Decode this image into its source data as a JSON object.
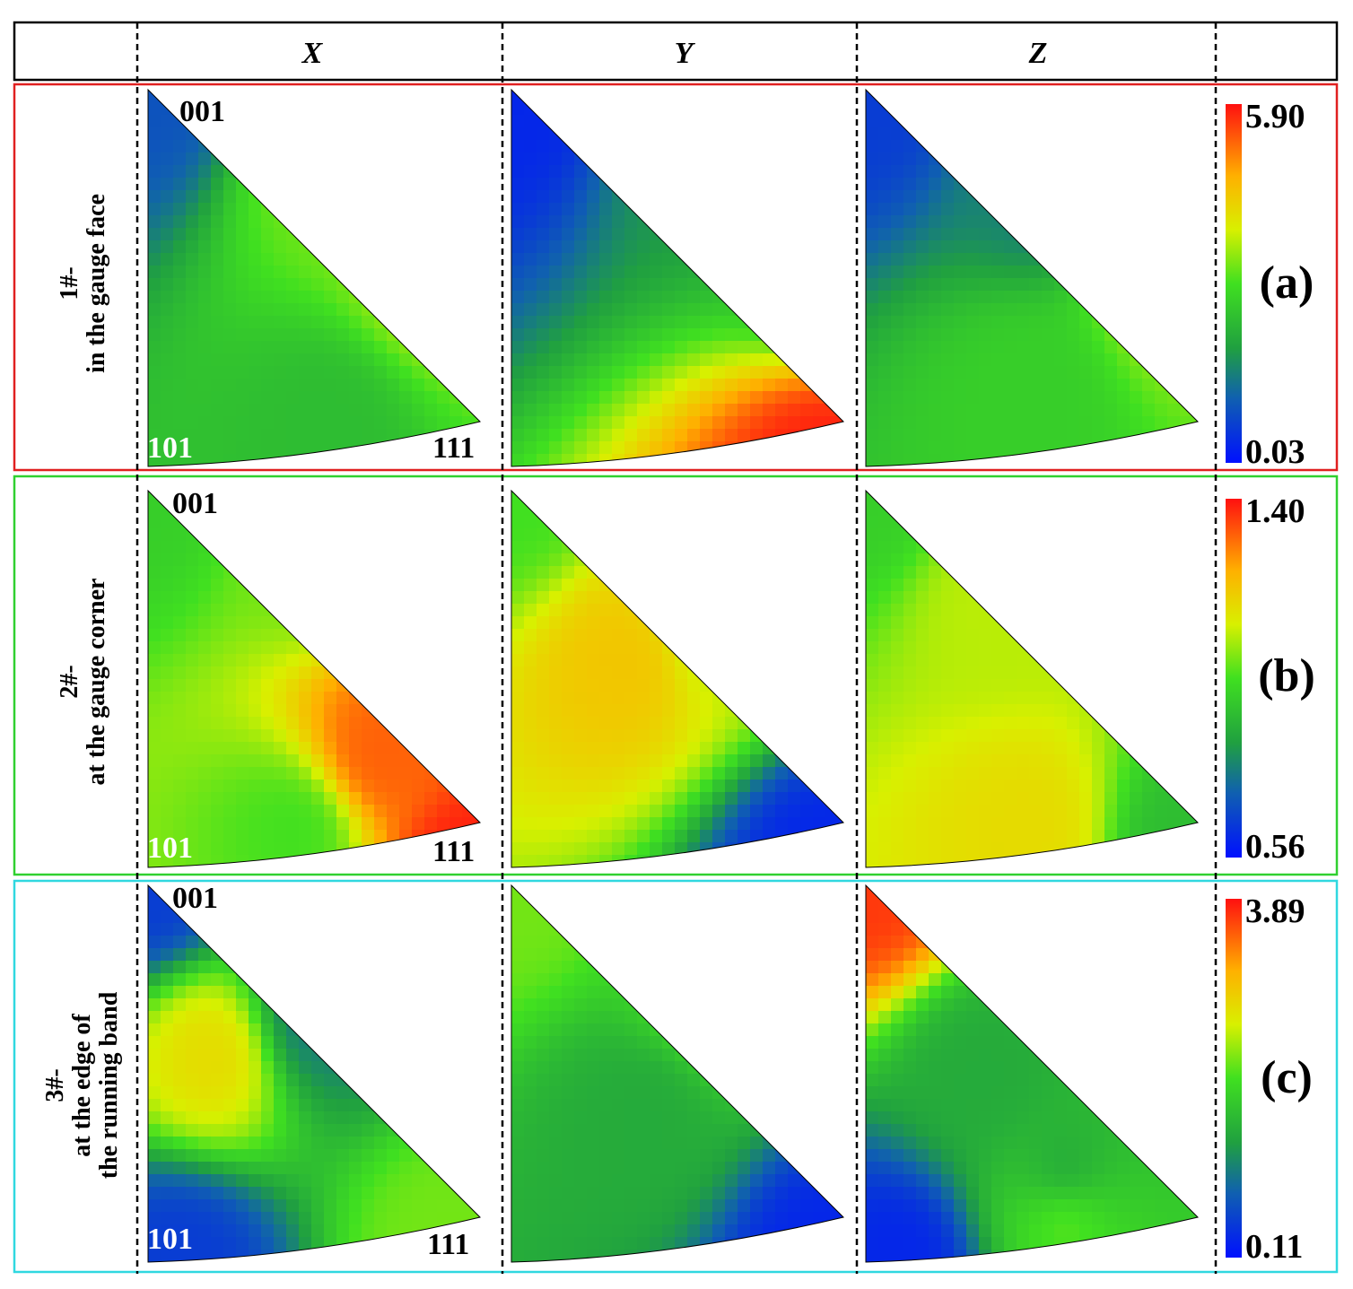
{
  "columns": [
    "X",
    "Y",
    "Z"
  ],
  "poles": {
    "top": "001",
    "left": "101",
    "right": "111"
  },
  "rows": [
    {
      "panel": "(a)",
      "label_line1": "1#-",
      "label_line2": "in the gauge face",
      "label_line3": "",
      "frame_color": "#e02020",
      "scale_max": "5.90",
      "scale_min": "0.03",
      "maps": [
        {
          "stops": [
            [
              0,
              0,
              0.15
            ],
            [
              0.55,
              0.2,
              0.55
            ],
            [
              0.85,
              0.5,
              0.6
            ],
            [
              0.55,
              0.88,
              0.4
            ]
          ]
        },
        {
          "stops": [
            [
              0,
              0,
              0.05
            ],
            [
              0.6,
              0.15,
              0.3
            ],
            [
              0.95,
              0.45,
              0.4
            ],
            [
              0.95,
              1.0,
              0.98
            ]
          ]
        },
        {
          "stops": [
            [
              0,
              0,
              0.1
            ],
            [
              0.55,
              0.25,
              0.25
            ],
            [
              0.5,
              0.8,
              0.45
            ],
            [
              0.9,
              0.5,
              0.6
            ]
          ]
        }
      ]
    },
    {
      "panel": "(b)",
      "label_line1": "2#-",
      "label_line2": "at the gauge corner",
      "label_line3": "",
      "frame_color": "#30d030",
      "scale_max": "1.40",
      "scale_min": "0.56",
      "maps": [
        {
          "stops": [
            [
              0,
              0,
              0.45
            ],
            [
              0.5,
              0.15,
              0.55
            ],
            [
              0.7,
              0.7,
              0.9
            ],
            [
              0.95,
              1.0,
              0.98
            ],
            [
              0.45,
              0.9,
              0.5
            ]
          ]
        },
        {
          "stops": [
            [
              0,
              0,
              0.5
            ],
            [
              0.35,
              0.45,
              0.75
            ],
            [
              0.6,
              0.35,
              0.62
            ],
            [
              0.95,
              1.0,
              0.05
            ]
          ]
        },
        {
          "stops": [
            [
              0,
              0,
              0.45
            ],
            [
              0.4,
              0.3,
              0.62
            ],
            [
              0.5,
              0.9,
              0.7
            ],
            [
              0.95,
              0.95,
              0.4
            ]
          ]
        }
      ]
    },
    {
      "panel": "(c)",
      "label_line1": "3#-",
      "label_line2": "at the edge of",
      "label_line3": "the running band",
      "frame_color": "#30d8e0",
      "scale_max": "3.89",
      "scale_min": "0.11",
      "maps": [
        {
          "stops": [
            [
              0,
              0,
              0.1
            ],
            [
              0.2,
              0.45,
              0.7
            ],
            [
              0.5,
              0.35,
              0.25
            ],
            [
              0.9,
              0.95,
              0.55
            ],
            [
              0.1,
              1.0,
              0.1
            ]
          ]
        },
        {
          "stops": [
            [
              0,
              0,
              0.55
            ],
            [
              0.4,
              0.6,
              0.35
            ],
            [
              0.6,
              0.3,
              0.5
            ],
            [
              0.95,
              1.0,
              0.05
            ]
          ]
        },
        {
          "stops": [
            [
              0,
              0,
              0.95
            ],
            [
              0.35,
              0.5,
              0.35
            ],
            [
              0.6,
              0.8,
              0.28
            ],
            [
              0.1,
              1.0,
              0.05
            ],
            [
              0.6,
              0.85,
              0.6
            ]
          ]
        }
      ]
    }
  ]
}
